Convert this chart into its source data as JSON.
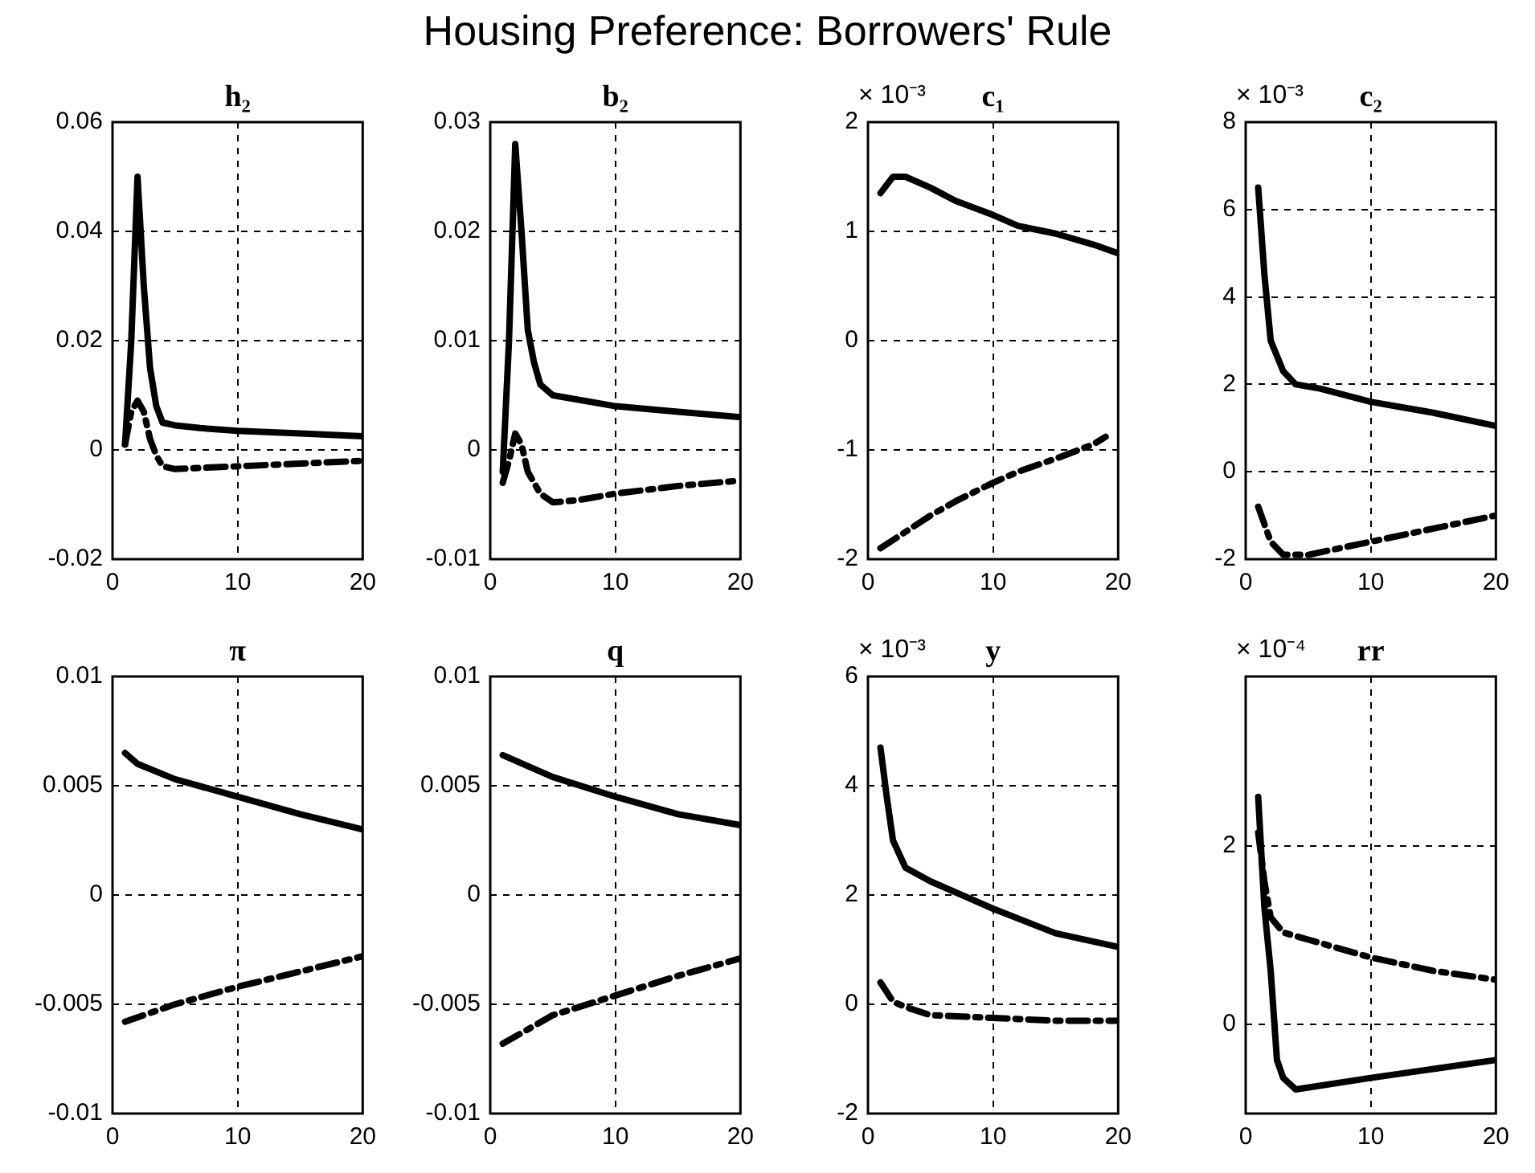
{
  "chart_data": [
    {
      "type": "line",
      "title": "h₂",
      "annotations": [
        "Housing Preference: Borrowers' Rule"
      ],
      "xlim": [
        0,
        20
      ],
      "xticks": [
        0,
        10,
        20
      ],
      "ylim": [
        -0.02,
        0.06
      ],
      "yticks": [
        -0.02,
        0,
        0.02,
        0.04,
        0.06
      ],
      "grid": true,
      "series": [
        {
          "color": "#000000",
          "line_style": "solid",
          "x": [
            1,
            1.5,
            2,
            2.5,
            3,
            3.5,
            4,
            5,
            7,
            10,
            15,
            20
          ],
          "values": [
            0.001,
            0.02,
            0.05,
            0.03,
            0.015,
            0.008,
            0.005,
            0.0045,
            0.004,
            0.0035,
            0.003,
            0.0025
          ]
        },
        {
          "color": "#000000",
          "line_style": "dashdot",
          "x": [
            1,
            1.5,
            2,
            2.5,
            3,
            3.5,
            4,
            5,
            10,
            15,
            20
          ],
          "values": [
            0.001,
            0.007,
            0.009,
            0.007,
            0.002,
            -0.001,
            -0.003,
            -0.0035,
            -0.003,
            -0.0025,
            -0.002
          ]
        }
      ]
    },
    {
      "type": "line",
      "title": "b₂",
      "xlim": [
        0,
        20
      ],
      "xticks": [
        0,
        10,
        20
      ],
      "ylim": [
        -0.01,
        0.03
      ],
      "yticks": [
        -0.01,
        0,
        0.01,
        0.02,
        0.03
      ],
      "grid": true,
      "series": [
        {
          "color": "#000000",
          "line_style": "solid",
          "x": [
            1,
            1.5,
            2,
            2.5,
            3,
            3.5,
            4,
            5,
            10,
            15,
            20
          ],
          "values": [
            -0.002,
            0.01,
            0.028,
            0.02,
            0.011,
            0.008,
            0.006,
            0.005,
            0.004,
            0.0035,
            0.003
          ]
        },
        {
          "color": "#000000",
          "line_style": "dashdot",
          "x": [
            1,
            1.5,
            2,
            2.5,
            3,
            4,
            5,
            7,
            10,
            15,
            20
          ],
          "values": [
            -0.003,
            -0.001,
            0.0015,
            0.0005,
            -0.002,
            -0.004,
            -0.0048,
            -0.0046,
            -0.004,
            -0.0033,
            -0.0028
          ]
        }
      ]
    },
    {
      "type": "line",
      "title": "c₁",
      "ylabel": "× 10⁻³",
      "xlim": [
        0,
        20
      ],
      "xticks": [
        0,
        10,
        20
      ],
      "ylim": [
        -2,
        2
      ],
      "yticks": [
        -2,
        -1,
        0,
        1,
        2
      ],
      "grid": true,
      "series": [
        {
          "color": "#000000",
          "line_style": "solid",
          "x": [
            1,
            2,
            3,
            5,
            7,
            10,
            12,
            15,
            18,
            20
          ],
          "values": [
            1.35,
            1.5,
            1.5,
            1.4,
            1.28,
            1.15,
            1.05,
            0.98,
            0.88,
            0.8
          ]
        },
        {
          "color": "#000000",
          "line_style": "dashdot",
          "x": [
            1,
            3,
            5,
            7,
            10,
            12,
            15,
            18,
            19
          ],
          "values": [
            -1.9,
            -1.75,
            -1.6,
            -1.47,
            -1.3,
            -1.2,
            -1.08,
            -0.95,
            -0.88
          ]
        }
      ]
    },
    {
      "type": "line",
      "title": "c₂",
      "ylabel": "× 10⁻³",
      "xlim": [
        0,
        20
      ],
      "xticks": [
        0,
        10,
        20
      ],
      "ylim": [
        -2,
        8
      ],
      "yticks": [
        -2,
        0,
        2,
        4,
        6,
        8
      ],
      "grid": true,
      "series": [
        {
          "color": "#000000",
          "line_style": "solid",
          "x": [
            1,
            1.5,
            2,
            3,
            4,
            6,
            10,
            15,
            20
          ],
          "values": [
            6.5,
            4.5,
            3,
            2.3,
            2,
            1.9,
            1.6,
            1.35,
            1.05
          ]
        },
        {
          "color": "#000000",
          "line_style": "dashdot",
          "x": [
            1,
            2,
            3,
            5,
            10,
            15,
            20
          ],
          "values": [
            -0.8,
            -1.6,
            -1.9,
            -1.9,
            -1.6,
            -1.3,
            -1.0
          ]
        }
      ]
    },
    {
      "type": "line",
      "title": "π",
      "xlim": [
        0,
        20
      ],
      "xticks": [
        0,
        10,
        20
      ],
      "ylim": [
        -0.01,
        0.01
      ],
      "yticks": [
        -0.01,
        -0.005,
        0,
        0.005,
        0.01
      ],
      "grid": true,
      "series": [
        {
          "color": "#000000",
          "line_style": "solid",
          "x": [
            1,
            2,
            5,
            10,
            15,
            20
          ],
          "values": [
            0.0065,
            0.006,
            0.0053,
            0.0045,
            0.0037,
            0.003
          ]
        },
        {
          "color": "#000000",
          "line_style": "dashdot",
          "x": [
            1,
            5,
            10,
            15,
            20
          ],
          "values": [
            -0.0058,
            -0.005,
            -0.0042,
            -0.0035,
            -0.0028
          ]
        }
      ]
    },
    {
      "type": "line",
      "title": "q",
      "xlim": [
        0,
        20
      ],
      "xticks": [
        0,
        10,
        20
      ],
      "ylim": [
        -0.01,
        0.01
      ],
      "yticks": [
        -0.01,
        -0.005,
        0,
        0.005,
        0.01
      ],
      "grid": true,
      "series": [
        {
          "color": "#000000",
          "line_style": "solid",
          "x": [
            1,
            5,
            10,
            15,
            20
          ],
          "values": [
            0.0064,
            0.0054,
            0.0045,
            0.0037,
            0.0032
          ]
        },
        {
          "color": "#000000",
          "line_style": "dashdot",
          "x": [
            1,
            5,
            10,
            15,
            20
          ],
          "values": [
            -0.0068,
            -0.0055,
            -0.0046,
            -0.0037,
            -0.0029
          ]
        }
      ]
    },
    {
      "type": "line",
      "title": "y",
      "ylabel": "× 10⁻³",
      "xlim": [
        0,
        20
      ],
      "xticks": [
        0,
        10,
        20
      ],
      "ylim": [
        -2,
        6
      ],
      "yticks": [
        -2,
        0,
        2,
        4,
        6
      ],
      "grid": true,
      "series": [
        {
          "color": "#000000",
          "line_style": "solid",
          "x": [
            1,
            1.5,
            2,
            3,
            5,
            8,
            10,
            15,
            20
          ],
          "values": [
            4.7,
            3.8,
            3.0,
            2.5,
            2.25,
            1.95,
            1.75,
            1.3,
            1.05
          ]
        },
        {
          "color": "#000000",
          "line_style": "dashdot",
          "x": [
            1,
            2,
            3,
            5,
            10,
            15,
            20
          ],
          "values": [
            0.4,
            0.05,
            -0.05,
            -0.2,
            -0.25,
            -0.3,
            -0.3
          ]
        }
      ]
    },
    {
      "type": "line",
      "title": "rr",
      "ylabel": "× 10⁻⁴",
      "xlim": [
        0,
        20
      ],
      "xticks": [
        0,
        10,
        20
      ],
      "ylim": [
        -1,
        3.9
      ],
      "yticks": [
        0,
        2
      ],
      "grid": true,
      "series": [
        {
          "color": "#000000",
          "line_style": "solid",
          "x": [
            1,
            1.5,
            2,
            2.5,
            3,
            4,
            10,
            15,
            20
          ],
          "values": [
            2.55,
            1.3,
            0.6,
            -0.4,
            -0.6,
            -0.73,
            -0.6,
            -0.5,
            -0.4
          ]
        },
        {
          "color": "#000000",
          "line_style": "dashdot",
          "x": [
            1,
            1.5,
            2,
            3,
            5,
            10,
            15,
            20
          ],
          "values": [
            2.15,
            1.6,
            1.2,
            1.03,
            0.95,
            0.75,
            0.6,
            0.5
          ]
        }
      ]
    }
  ]
}
